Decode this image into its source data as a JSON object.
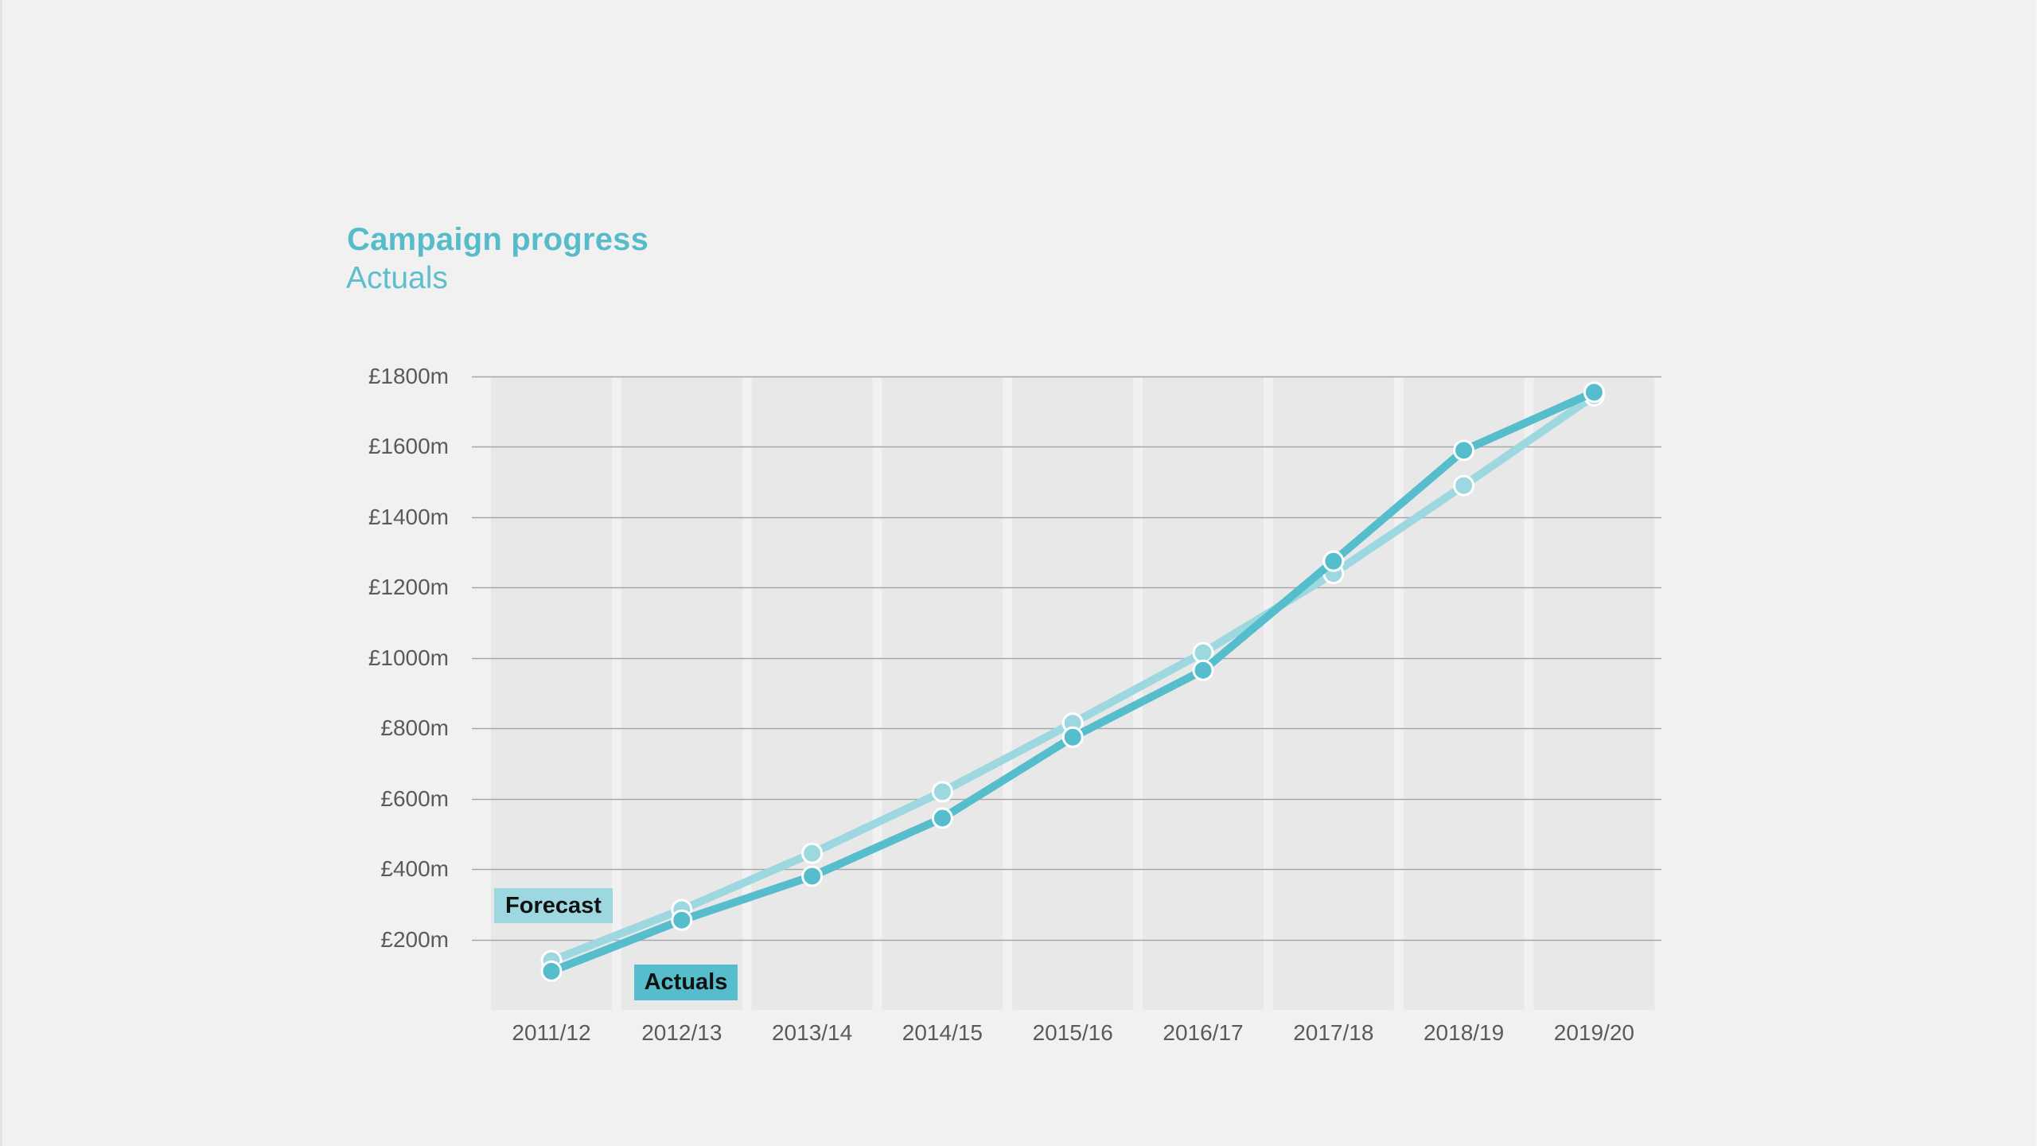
{
  "colors": {
    "background": "#f1f1f1",
    "band": "#e8e8e8",
    "gridline": "#a8a8a8",
    "title": "#57bcc9",
    "actuals": "#55bdcb",
    "forecast": "#9dd8e1",
    "marker_stroke": "#ffffff",
    "axis_text": "#5a5a5a"
  },
  "header": {
    "title": "Campaign progress",
    "subtitle": "Actuals"
  },
  "legend": {
    "forecast_label": "Forecast",
    "actuals_label": "Actuals"
  },
  "chart_data": {
    "type": "line",
    "title": "Campaign progress",
    "subtitle": "Actuals",
    "xlabel": "",
    "ylabel": "",
    "categories": [
      "2011/12",
      "2012/13",
      "2013/14",
      "2014/15",
      "2015/16",
      "2016/17",
      "2017/18",
      "2018/19",
      "2019/20"
    ],
    "series": [
      {
        "name": "Forecast",
        "color": "#9dd8e1",
        "values": [
          140,
          285,
          445,
          620,
          815,
          1015,
          1240,
          1490,
          1745
        ]
      },
      {
        "name": "Actuals",
        "color": "#55bdcb",
        "values": [
          110,
          255,
          380,
          545,
          775,
          965,
          1275,
          1590,
          1755
        ]
      }
    ],
    "yticks": [
      200,
      400,
      600,
      800,
      1000,
      1200,
      1400,
      1600,
      1800
    ],
    "ytick_labels": [
      "£200m",
      "£400m",
      "£600m",
      "£800m",
      "£1000m",
      "£1200m",
      "£1400m",
      "£1600m",
      "£1800m"
    ],
    "ylim": [
      0,
      1800
    ],
    "units": "£m",
    "grid": true,
    "legend_position": "inline-labels-bottom-left",
    "markers": true
  }
}
